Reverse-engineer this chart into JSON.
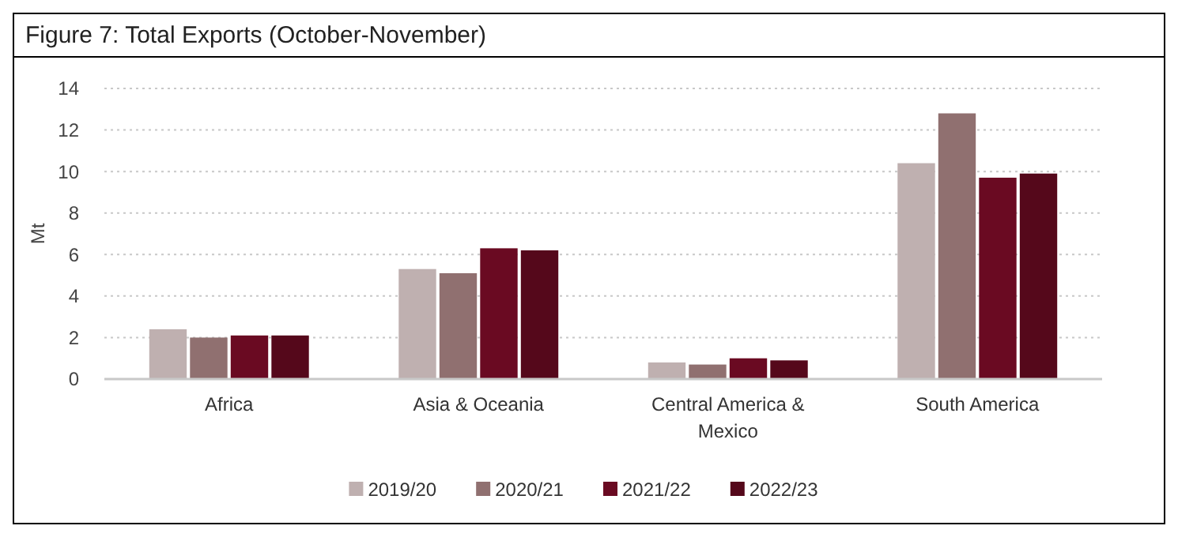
{
  "chart_data": {
    "type": "bar",
    "title": "Figure 7: Total Exports (October-November)",
    "ylabel": "Mt",
    "categories": [
      "Africa",
      "Asia & Oceania",
      "Central America & Mexico",
      "South America"
    ],
    "series": [
      {
        "name": "2019/20",
        "color": "#bfb0b0",
        "values": [
          2.4,
          5.3,
          0.8,
          10.4
        ]
      },
      {
        "name": "2020/21",
        "color": "#907070",
        "values": [
          2.0,
          5.1,
          0.7,
          12.8
        ]
      },
      {
        "name": "2021/22",
        "color": "#6a0a22",
        "values": [
          2.1,
          6.3,
          1.0,
          9.7
        ]
      },
      {
        "name": "2022/23",
        "color": "#55081b",
        "values": [
          2.1,
          6.2,
          0.9,
          9.9
        ]
      }
    ],
    "ylim": [
      0,
      14
    ],
    "yticks": [
      0,
      2,
      4,
      6,
      8,
      10,
      12,
      14
    ],
    "grid": "y",
    "legend": "bottom"
  }
}
